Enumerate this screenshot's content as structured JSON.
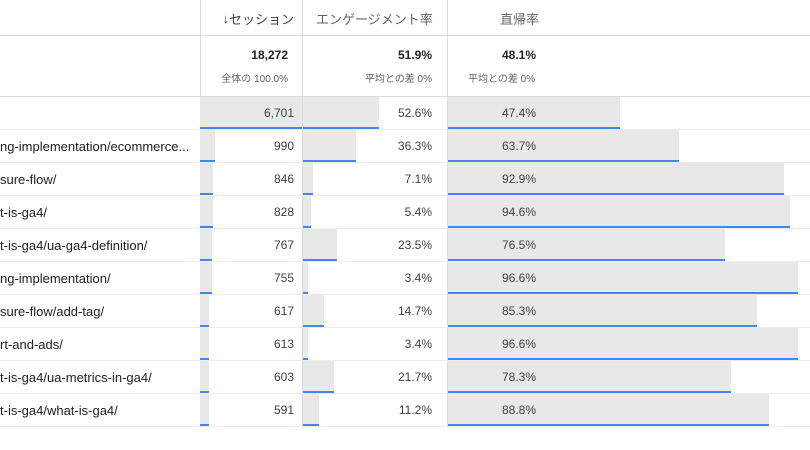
{
  "header": {
    "sort_arrow": "↓",
    "sessions": "セッション",
    "engagement_rate": "エンゲージメント率",
    "bounce_rate": "直帰率"
  },
  "totals": {
    "sessions": "18,272",
    "sessions_sub": "全体の 100.0%",
    "engagement_rate": "51.9%",
    "engagement_sub": "平均との差 0%",
    "bounce_rate": "48.1%",
    "bounce_sub": "平均との差 0%"
  },
  "rows": [
    {
      "page": "",
      "sessions": "6,701",
      "sessions_frac": 1.0,
      "engagement": "52.6%",
      "engagement_pct": 52.6,
      "bounce": "47.4%",
      "bounce_pct": 47.4
    },
    {
      "page": "ng-implementation/ecommerce...",
      "sessions": "990",
      "sessions_frac": 0.148,
      "engagement": "36.3%",
      "engagement_pct": 36.3,
      "bounce": "63.7%",
      "bounce_pct": 63.7
    },
    {
      "page": "sure-flow/",
      "sessions": "846",
      "sessions_frac": 0.126,
      "engagement": "7.1%",
      "engagement_pct": 7.1,
      "bounce": "92.9%",
      "bounce_pct": 92.9
    },
    {
      "page": "t-is-ga4/",
      "sessions": "828",
      "sessions_frac": 0.124,
      "engagement": "5.4%",
      "engagement_pct": 5.4,
      "bounce": "94.6%",
      "bounce_pct": 94.6
    },
    {
      "page": "t-is-ga4/ua-ga4-definition/",
      "sessions": "767",
      "sessions_frac": 0.114,
      "engagement": "23.5%",
      "engagement_pct": 23.5,
      "bounce": "76.5%",
      "bounce_pct": 76.5
    },
    {
      "page": "ng-implementation/",
      "sessions": "755",
      "sessions_frac": 0.113,
      "engagement": "3.4%",
      "engagement_pct": 3.4,
      "bounce": "96.6%",
      "bounce_pct": 96.6
    },
    {
      "page": "sure-flow/add-tag/",
      "sessions": "617",
      "sessions_frac": 0.092,
      "engagement": "14.7%",
      "engagement_pct": 14.7,
      "bounce": "85.3%",
      "bounce_pct": 85.3
    },
    {
      "page": "rt-and-ads/",
      "sessions": "613",
      "sessions_frac": 0.091,
      "engagement": "3.4%",
      "engagement_pct": 3.4,
      "bounce": "96.6%",
      "bounce_pct": 96.6
    },
    {
      "page": "t-is-ga4/ua-metrics-in-ga4/",
      "sessions": "603",
      "sessions_frac": 0.09,
      "engagement": "21.7%",
      "engagement_pct": 21.7,
      "bounce": "78.3%",
      "bounce_pct": 78.3
    },
    {
      "page": "t-is-ga4/what-is-ga4/",
      "sessions": "591",
      "sessions_frac": 0.088,
      "engagement": "11.2%",
      "engagement_pct": 11.2,
      "bounce": "88.8%",
      "bounce_pct": 88.8
    }
  ],
  "colors": {
    "bar_bg": "#e8e8e8",
    "accent_line": "#4285f4",
    "divider": "#dadce0"
  }
}
